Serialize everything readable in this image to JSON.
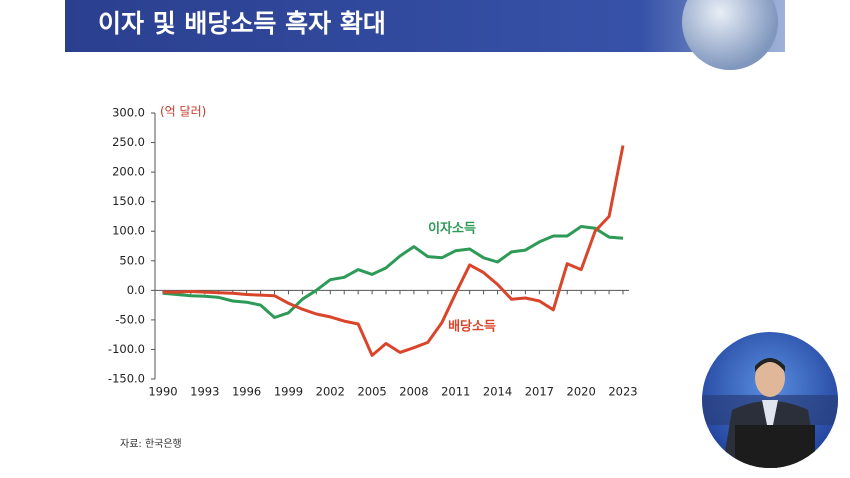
{
  "chart_data": {
    "type": "line",
    "title": "이자 및 배당소득 흑자 확대",
    "ylabel": "(억 달러)",
    "source": "자료: 한국은행",
    "x": [
      1990,
      1991,
      1992,
      1993,
      1994,
      1995,
      1996,
      1997,
      1998,
      1999,
      2000,
      2001,
      2002,
      2003,
      2004,
      2005,
      2006,
      2007,
      2008,
      2009,
      2010,
      2011,
      2012,
      2013,
      2014,
      2015,
      2016,
      2017,
      2018,
      2019,
      2020,
      2021,
      2022,
      2023
    ],
    "xlim": [
      1990,
      2023
    ],
    "xticks": [
      1990,
      1993,
      1996,
      1999,
      2002,
      2005,
      2008,
      2011,
      2014,
      2017,
      2020,
      2023
    ],
    "ylim": [
      -150,
      300
    ],
    "yticks": [
      {
        "value": 300,
        "label": "300.0"
      },
      {
        "value": 250,
        "label": "250.0"
      },
      {
        "value": 200,
        "label": "200.0"
      },
      {
        "value": 150,
        "label": "150.0"
      },
      {
        "value": 100,
        "label": "100.0"
      },
      {
        "value": 50,
        "label": "50.0"
      },
      {
        "value": 0,
        "label": "0.0"
      },
      {
        "value": -50,
        "label": "-50.0"
      },
      {
        "value": -100,
        "label": "-100.0"
      },
      {
        "value": -150,
        "label": "-150.0"
      }
    ],
    "series": [
      {
        "name": "이자소득",
        "color": "#2e9a57",
        "values": [
          -5,
          -7,
          -9,
          -10,
          -12,
          -18,
          -20,
          -25,
          -46,
          -38,
          -15,
          0,
          18,
          22,
          35,
          27,
          38,
          58,
          74,
          57,
          55,
          67,
          70,
          55,
          48,
          65,
          68,
          82,
          92,
          92,
          108,
          105,
          90,
          88
        ]
      },
      {
        "name": "배당소득",
        "color": "#d9452b",
        "values": [
          -3,
          -3,
          -2,
          -3,
          -4,
          -5,
          -7,
          -8,
          -9,
          -22,
          -32,
          -40,
          -45,
          -52,
          -57,
          -110,
          -90,
          -105,
          -97,
          -88,
          -55,
          -5,
          43,
          30,
          10,
          -15,
          -13,
          -18,
          -33,
          45,
          35,
          100,
          125,
          245
        ]
      }
    ]
  }
}
